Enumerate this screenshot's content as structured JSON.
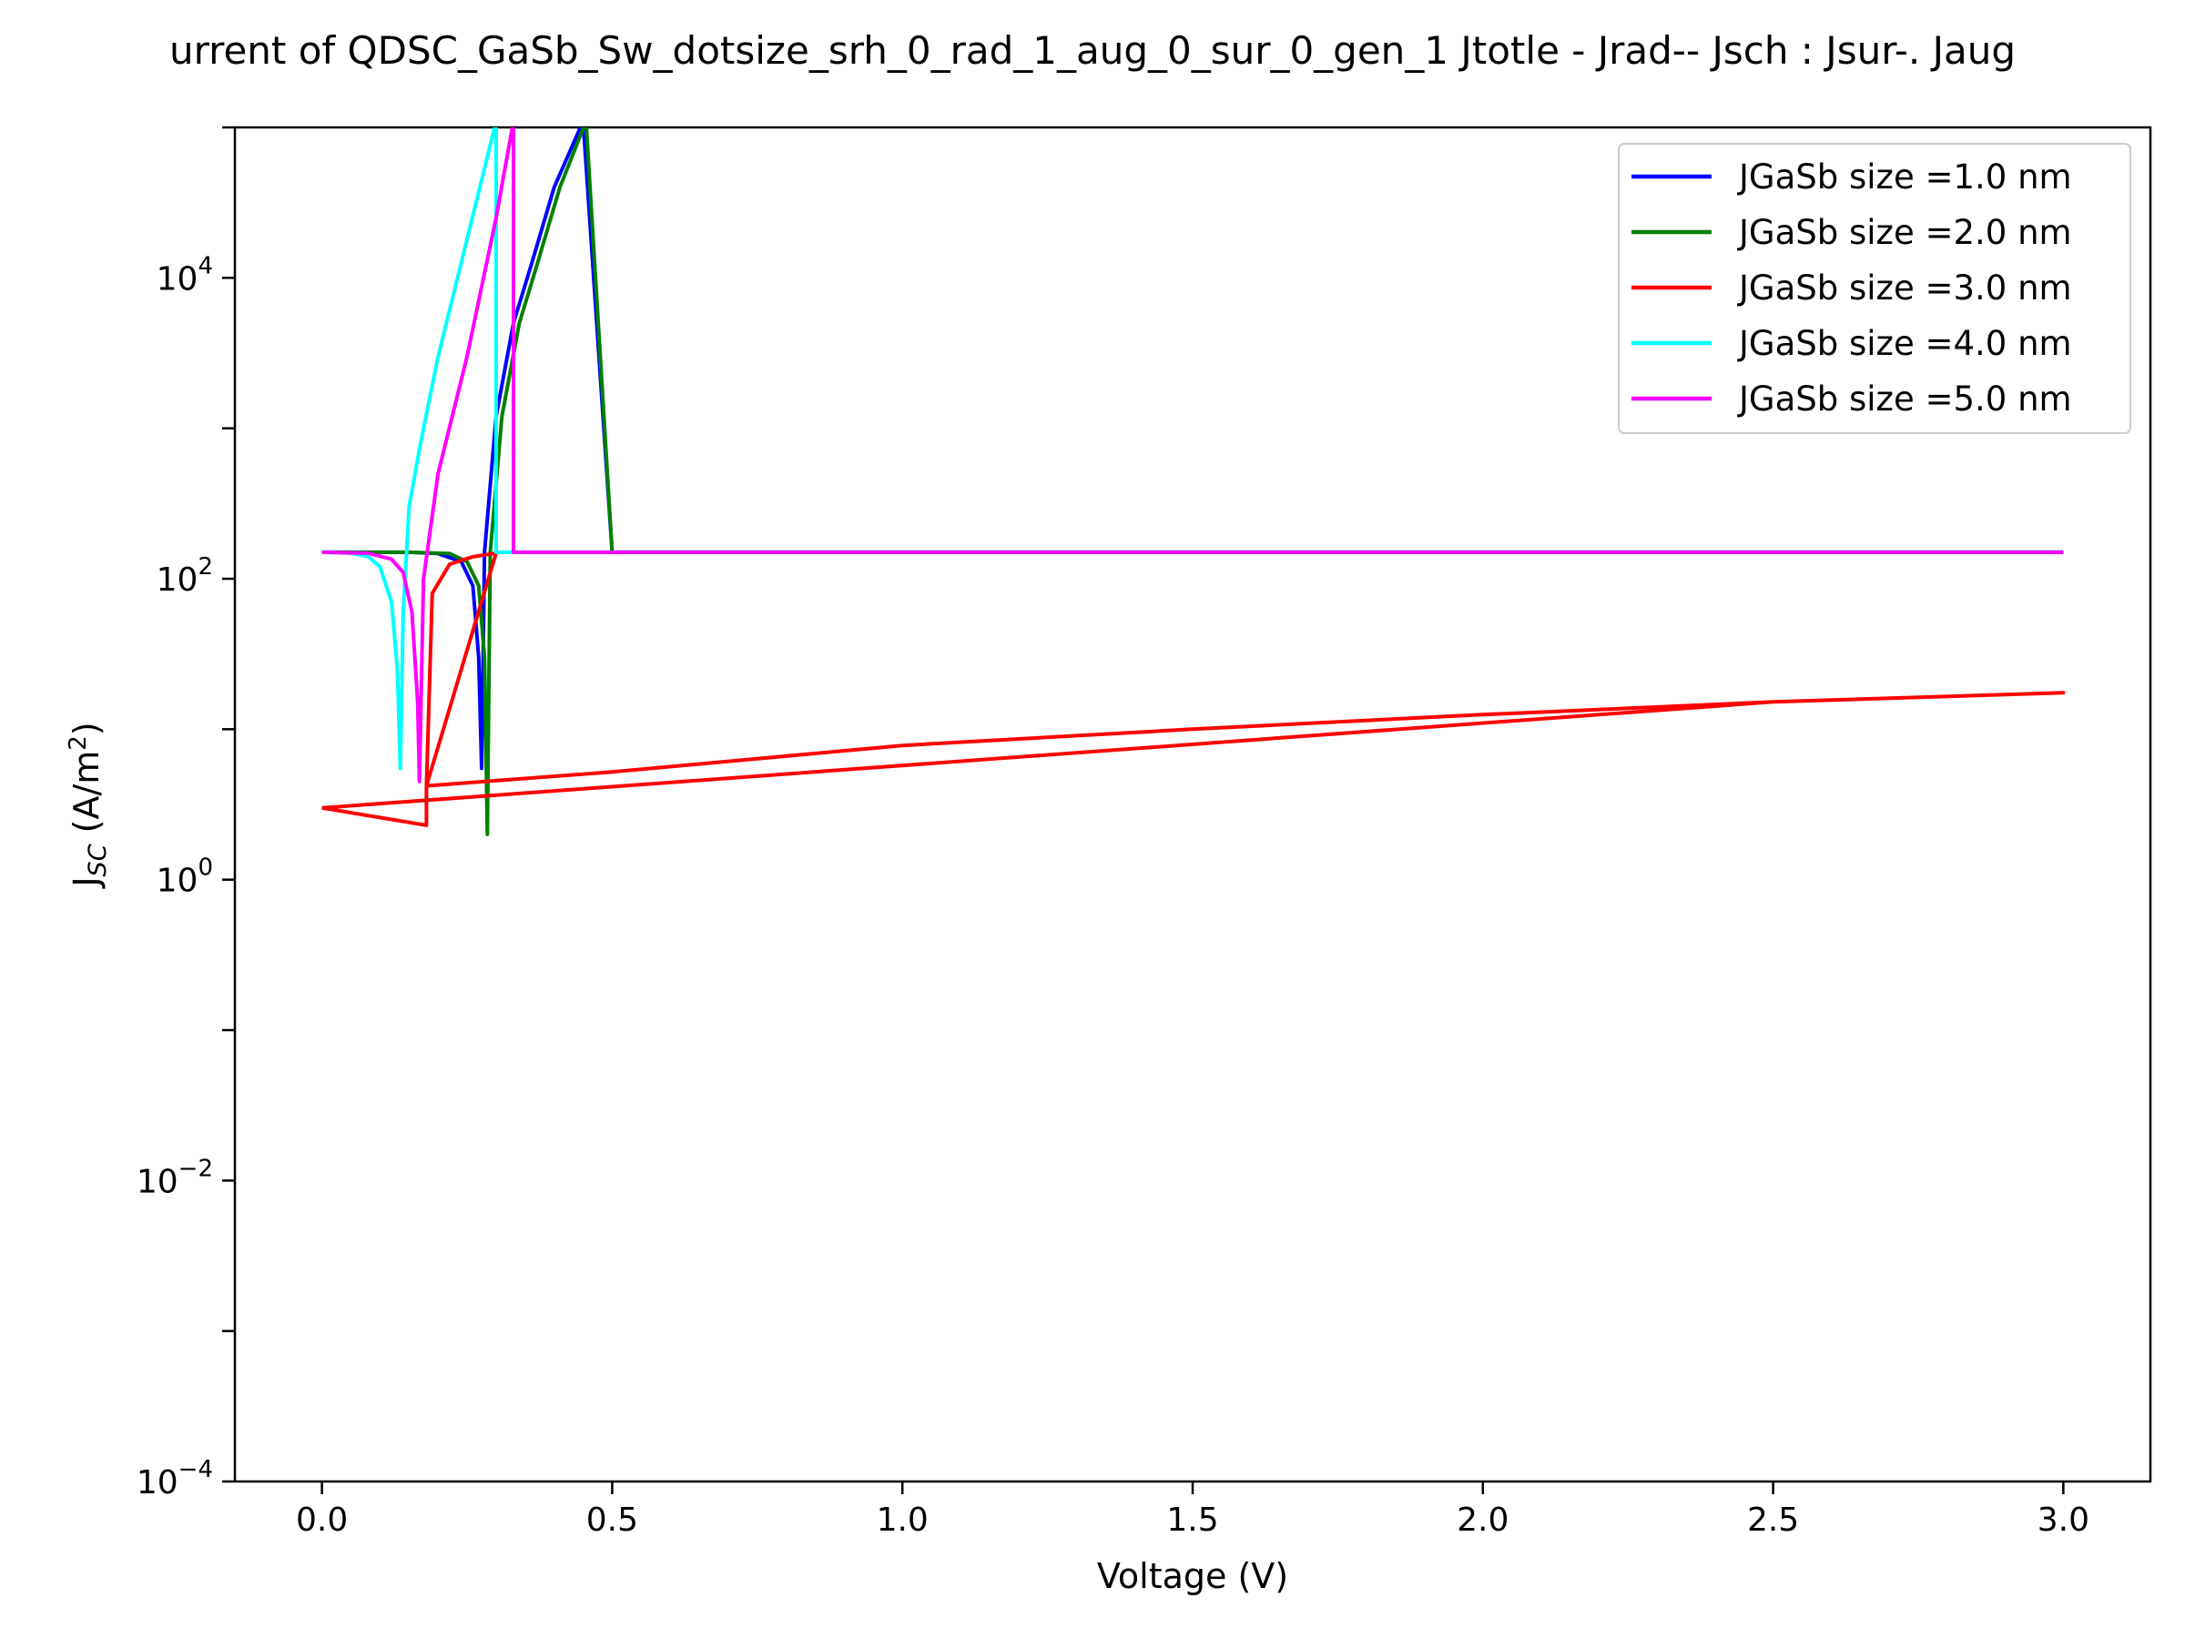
{
  "chart_data": {
    "type": "line",
    "title": "urrent of QDSC_GaSb_Sw_dotsize_srh_0_rad_1_aug_0_sur_0_gen_1 Jtotle - Jrad-- Jsch : Jsur-. Jaug",
    "xlabel": "Voltage (V)",
    "ylabel_main": "J",
    "ylabel_sub": "SC",
    "ylabel_unit": " (A/m",
    "ylabel_sup": "2",
    "ylabel_close": ")",
    "xlim": [
      -0.15,
      3.15
    ],
    "ylim_log10": [
      -4,
      5
    ],
    "yscale": "log",
    "x_ticks": [
      0.0,
      0.5,
      1.0,
      1.5,
      2.0,
      2.5,
      3.0
    ],
    "x_tick_labels": [
      "0.0",
      "0.5",
      "1.0",
      "1.5",
      "2.0",
      "2.5",
      "3.0"
    ],
    "y_ticks_log10": [
      -4,
      -2,
      0,
      2,
      4
    ],
    "y_tick_base": "10",
    "y_tick_exponents": [
      "−4",
      "−2",
      "0",
      "2",
      "4"
    ],
    "legend_position": "top-right",
    "series": [
      {
        "name": "JGaSb size =1.0 nm",
        "color": "#0000ff",
        "points": [
          [
            0.0,
            150
          ],
          [
            0.15,
            150
          ],
          [
            0.2,
            147
          ],
          [
            0.24,
            130
          ],
          [
            0.26,
            90
          ],
          [
            0.27,
            30
          ],
          [
            0.275,
            5.5
          ],
          [
            0.28,
            150
          ],
          [
            0.3,
            1200
          ],
          [
            0.33,
            5000
          ],
          [
            0.36,
            12000
          ],
          [
            0.4,
            40000
          ],
          [
            0.45,
            110000
          ],
          [
            0.5,
            150
          ],
          [
            3.0,
            150
          ]
        ]
      },
      {
        "name": "JGaSb size =2.0 nm",
        "color": "#008000",
        "points": [
          [
            0.0,
            150
          ],
          [
            0.15,
            150
          ],
          [
            0.22,
            147
          ],
          [
            0.25,
            130
          ],
          [
            0.27,
            90
          ],
          [
            0.28,
            30
          ],
          [
            0.285,
            2.0
          ],
          [
            0.29,
            150
          ],
          [
            0.31,
            1200
          ],
          [
            0.34,
            5000
          ],
          [
            0.37,
            12000
          ],
          [
            0.41,
            40000
          ],
          [
            0.455,
            110000
          ],
          [
            0.5,
            150
          ],
          [
            3.0,
            150
          ]
        ]
      },
      {
        "name": "JGaSb size =3.0 nm",
        "color": "#ff0000",
        "points": [
          [
            0.0,
            3.0
          ],
          [
            0.18,
            2.3
          ],
          [
            0.18,
            4.2
          ],
          [
            0.19,
            80
          ],
          [
            0.22,
            125
          ],
          [
            0.26,
            140
          ],
          [
            0.3,
            148
          ],
          [
            0.18,
            4.2
          ],
          [
            0.5,
            5.2
          ],
          [
            1.0,
            7.8
          ],
          [
            1.5,
            10.0
          ],
          [
            2.0,
            12.5
          ],
          [
            2.5,
            15.2
          ],
          [
            3.0,
            17.5
          ],
          [
            2.5,
            15.2
          ],
          [
            0.0,
            3.0
          ]
        ]
      },
      {
        "name": "JGaSb size =4.0 nm",
        "color": "#00ffff",
        "points": [
          [
            0.0,
            150
          ],
          [
            0.05,
            148
          ],
          [
            0.08,
            140
          ],
          [
            0.1,
            120
          ],
          [
            0.12,
            70
          ],
          [
            0.13,
            25
          ],
          [
            0.135,
            5.5
          ],
          [
            0.14,
            60
          ],
          [
            0.15,
            300
          ],
          [
            0.17,
            800
          ],
          [
            0.2,
            3000
          ],
          [
            0.25,
            18000
          ],
          [
            0.3,
            110000
          ],
          [
            0.3,
            150
          ],
          [
            3.0,
            150
          ]
        ]
      },
      {
        "name": "JGaSb size =5.0 nm",
        "color": "#ff00ff",
        "points": [
          [
            0.0,
            150
          ],
          [
            0.08,
            148
          ],
          [
            0.12,
            135
          ],
          [
            0.14,
            110
          ],
          [
            0.155,
            60
          ],
          [
            0.165,
            15
          ],
          [
            0.168,
            4.5
          ],
          [
            0.175,
            100
          ],
          [
            0.2,
            500
          ],
          [
            0.25,
            3000
          ],
          [
            0.3,
            25000
          ],
          [
            0.33,
            110000
          ],
          [
            0.33,
            150
          ],
          [
            3.0,
            150
          ]
        ]
      }
    ]
  }
}
